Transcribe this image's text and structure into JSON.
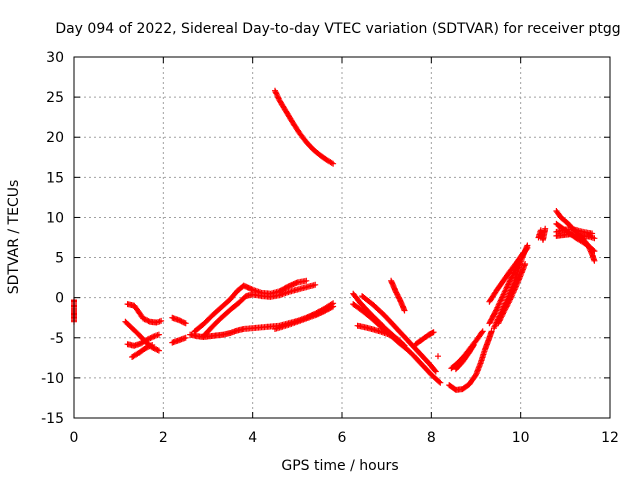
{
  "chart_data": {
    "type": "scatter",
    "title": "Day 094 of 2022, Sidereal Day-to-day VTEC variation (SDTVAR) for receiver ptgg",
    "xlabel": "GPS time / hours",
    "ylabel": "SDTVAR / TECUs",
    "xlim": [
      0,
      12
    ],
    "ylim": [
      -15,
      30
    ],
    "xticks": [
      0,
      2,
      4,
      6,
      8,
      10,
      12
    ],
    "yticks": [
      -15,
      -10,
      -5,
      0,
      5,
      10,
      15,
      20,
      25,
      30
    ],
    "grid": true,
    "marker": "plus",
    "color": "#ff0000",
    "segments": [
      [
        [
          0.0,
          -0.3
        ],
        [
          0.0,
          -1.5
        ],
        [
          0.0,
          -2.3
        ],
        [
          0.0,
          -3.0
        ]
      ],
      [
        [
          1.2,
          -0.8
        ],
        [
          1.35,
          -1.0
        ],
        [
          1.45,
          -1.8
        ],
        [
          1.55,
          -2.6
        ],
        [
          1.7,
          -3.0
        ],
        [
          1.85,
          -3.1
        ],
        [
          1.95,
          -2.9
        ]
      ],
      [
        [
          1.2,
          -5.8
        ],
        [
          1.35,
          -6.0
        ],
        [
          1.5,
          -5.7
        ],
        [
          1.65,
          -5.2
        ],
        [
          1.8,
          -4.8
        ],
        [
          1.9,
          -4.6
        ]
      ],
      [
        [
          1.15,
          -3.0
        ],
        [
          1.3,
          -3.8
        ],
        [
          1.45,
          -4.6
        ],
        [
          1.6,
          -5.5
        ],
        [
          1.75,
          -6.2
        ],
        [
          1.9,
          -6.6
        ]
      ],
      [
        [
          1.3,
          -7.4
        ],
        [
          1.45,
          -6.9
        ],
        [
          1.6,
          -6.3
        ],
        [
          1.75,
          -5.9
        ]
      ],
      [
        [
          2.2,
          -2.5
        ],
        [
          2.35,
          -2.8
        ],
        [
          2.5,
          -3.2
        ]
      ],
      [
        [
          2.2,
          -5.6
        ],
        [
          2.35,
          -5.3
        ],
        [
          2.5,
          -5.0
        ]
      ],
      [
        [
          2.6,
          -4.6
        ],
        [
          2.75,
          -4.8
        ],
        [
          2.9,
          -4.9
        ],
        [
          3.05,
          -4.8
        ],
        [
          3.2,
          -4.7
        ],
        [
          3.35,
          -4.6
        ],
        [
          3.5,
          -4.4
        ],
        [
          3.65,
          -4.1
        ],
        [
          3.8,
          -3.9
        ],
        [
          4.0,
          -3.8
        ],
        [
          4.2,
          -3.7
        ],
        [
          4.4,
          -3.6
        ],
        [
          4.6,
          -3.5
        ],
        [
          4.8,
          -3.2
        ],
        [
          5.0,
          -2.9
        ],
        [
          5.2,
          -2.5
        ],
        [
          5.4,
          -2.0
        ],
        [
          5.6,
          -1.4
        ],
        [
          5.8,
          -0.7
        ]
      ],
      [
        [
          2.7,
          -4.2
        ],
        [
          2.9,
          -3.3
        ],
        [
          3.1,
          -2.2
        ],
        [
          3.3,
          -1.2
        ],
        [
          3.5,
          -0.2
        ],
        [
          3.65,
          0.8
        ],
        [
          3.8,
          1.5
        ],
        [
          4.0,
          1.0
        ],
        [
          4.2,
          0.6
        ],
        [
          4.4,
          0.5
        ],
        [
          4.6,
          0.8
        ],
        [
          4.8,
          1.4
        ],
        [
          5.0,
          1.9
        ],
        [
          5.2,
          2.1
        ]
      ],
      [
        [
          2.9,
          -4.8
        ],
        [
          3.1,
          -3.6
        ],
        [
          3.3,
          -2.5
        ],
        [
          3.5,
          -1.5
        ],
        [
          3.7,
          -0.6
        ],
        [
          3.85,
          0.2
        ],
        [
          4.0,
          0.4
        ],
        [
          4.2,
          0.2
        ],
        [
          4.4,
          0.1
        ],
        [
          4.6,
          0.3
        ],
        [
          4.8,
          0.7
        ],
        [
          5.0,
          1.0
        ],
        [
          5.2,
          1.3
        ],
        [
          5.4,
          1.6
        ]
      ],
      [
        [
          4.5,
          -3.9
        ],
        [
          4.8,
          -3.4
        ],
        [
          5.1,
          -2.8
        ],
        [
          5.4,
          -2.2
        ],
        [
          5.6,
          -1.7
        ],
        [
          5.8,
          -1.1
        ]
      ],
      [
        [
          4.5,
          25.8
        ],
        [
          4.6,
          24.6
        ],
        [
          4.75,
          23.2
        ],
        [
          4.9,
          21.8
        ],
        [
          5.05,
          20.5
        ],
        [
          5.2,
          19.4
        ],
        [
          5.35,
          18.5
        ],
        [
          5.5,
          17.8
        ],
        [
          5.65,
          17.2
        ],
        [
          5.8,
          16.7
        ]
      ],
      [
        [
          6.25,
          0.5
        ],
        [
          6.4,
          -0.6
        ],
        [
          6.6,
          -1.8
        ],
        [
          6.8,
          -2.9
        ],
        [
          7.0,
          -4.0
        ],
        [
          7.2,
          -5.0
        ],
        [
          7.4,
          -6.0
        ]
      ],
      [
        [
          6.25,
          -0.8
        ],
        [
          6.45,
          -1.6
        ],
        [
          6.65,
          -2.5
        ],
        [
          6.85,
          -3.5
        ],
        [
          7.05,
          -4.5
        ],
        [
          7.25,
          -5.5
        ],
        [
          7.45,
          -6.4
        ],
        [
          7.6,
          -7.2
        ],
        [
          7.8,
          -8.4
        ],
        [
          8.0,
          -9.6
        ],
        [
          8.2,
          -10.6
        ]
      ],
      [
        [
          6.35,
          -3.5
        ],
        [
          6.6,
          -3.8
        ],
        [
          6.85,
          -4.2
        ],
        [
          7.05,
          -4.6
        ],
        [
          7.25,
          -5.2
        ],
        [
          7.4,
          -6.0
        ]
      ],
      [
        [
          6.45,
          0.2
        ],
        [
          6.7,
          -0.9
        ],
        [
          6.95,
          -2.2
        ],
        [
          7.15,
          -3.4
        ],
        [
          7.35,
          -4.6
        ],
        [
          7.55,
          -5.8
        ],
        [
          7.75,
          -7.0
        ],
        [
          7.95,
          -8.2
        ],
        [
          8.1,
          -9.2
        ]
      ],
      [
        [
          7.1,
          2.1
        ],
        [
          7.2,
          0.8
        ],
        [
          7.3,
          -0.3
        ],
        [
          7.4,
          -1.6
        ]
      ],
      [
        [
          7.65,
          -5.8
        ],
        [
          7.8,
          -5.2
        ],
        [
          7.95,
          -4.6
        ],
        [
          8.05,
          -4.3
        ]
      ],
      [
        [
          8.15,
          -7.3
        ]
      ],
      [
        [
          8.4,
          -10.9
        ],
        [
          8.55,
          -11.5
        ],
        [
          8.7,
          -11.4
        ],
        [
          8.85,
          -10.8
        ],
        [
          9.0,
          -9.6
        ],
        [
          9.1,
          -8.2
        ],
        [
          9.2,
          -6.5
        ],
        [
          9.3,
          -5.0
        ],
        [
          9.35,
          -4.2
        ]
      ],
      [
        [
          8.45,
          -8.8
        ],
        [
          8.6,
          -8.1
        ],
        [
          8.75,
          -7.2
        ],
        [
          8.9,
          -6.1
        ],
        [
          9.05,
          -5.0
        ],
        [
          9.15,
          -4.2
        ]
      ],
      [
        [
          8.55,
          -8.9
        ],
        [
          8.7,
          -8.0
        ],
        [
          8.85,
          -6.8
        ],
        [
          8.95,
          -5.9
        ]
      ],
      [
        [
          9.3,
          -3.2
        ],
        [
          9.45,
          -1.6
        ],
        [
          9.6,
          0.2
        ],
        [
          9.75,
          2.0
        ],
        [
          9.9,
          3.7
        ],
        [
          10.0,
          5.0
        ],
        [
          10.15,
          6.2
        ]
      ],
      [
        [
          9.4,
          -3.8
        ],
        [
          9.55,
          -2.0
        ],
        [
          9.7,
          -0.2
        ],
        [
          9.85,
          1.8
        ],
        [
          9.95,
          3.6
        ],
        [
          10.05,
          5.2
        ],
        [
          10.15,
          6.5
        ]
      ],
      [
        [
          9.5,
          -3.2
        ],
        [
          9.62,
          -1.8
        ],
        [
          9.75,
          -0.4
        ],
        [
          9.88,
          1.2
        ],
        [
          10.0,
          2.8
        ],
        [
          10.1,
          4.2
        ]
      ],
      [
        [
          9.3,
          -0.5
        ],
        [
          9.45,
          0.8
        ],
        [
          9.6,
          2.0
        ],
        [
          9.75,
          3.2
        ],
        [
          9.9,
          4.3
        ],
        [
          10.05,
          5.5
        ]
      ],
      [
        [
          10.4,
          7.5
        ],
        [
          10.45,
          8.4
        ],
        [
          10.5,
          7.2
        ],
        [
          10.55,
          8.6
        ]
      ],
      [
        [
          10.8,
          10.8
        ],
        [
          10.9,
          10.0
        ],
        [
          11.05,
          9.3
        ],
        [
          11.2,
          8.4
        ],
        [
          11.35,
          7.6
        ],
        [
          11.5,
          6.6
        ],
        [
          11.6,
          5.4
        ],
        [
          11.65,
          4.6
        ]
      ],
      [
        [
          10.8,
          9.2
        ],
        [
          10.95,
          8.6
        ],
        [
          11.1,
          8.0
        ],
        [
          11.25,
          7.4
        ],
        [
          11.4,
          6.9
        ],
        [
          11.55,
          6.3
        ],
        [
          11.65,
          5.8
        ]
      ],
      [
        [
          10.8,
          7.7
        ],
        [
          10.95,
          7.8
        ],
        [
          11.1,
          7.9
        ],
        [
          11.25,
          7.8
        ],
        [
          11.4,
          7.7
        ],
        [
          11.55,
          7.6
        ],
        [
          11.65,
          7.4
        ]
      ],
      [
        [
          10.8,
          8.2
        ],
        [
          11.0,
          8.5
        ],
        [
          11.2,
          8.5
        ],
        [
          11.4,
          8.2
        ],
        [
          11.6,
          8.0
        ]
      ]
    ]
  }
}
